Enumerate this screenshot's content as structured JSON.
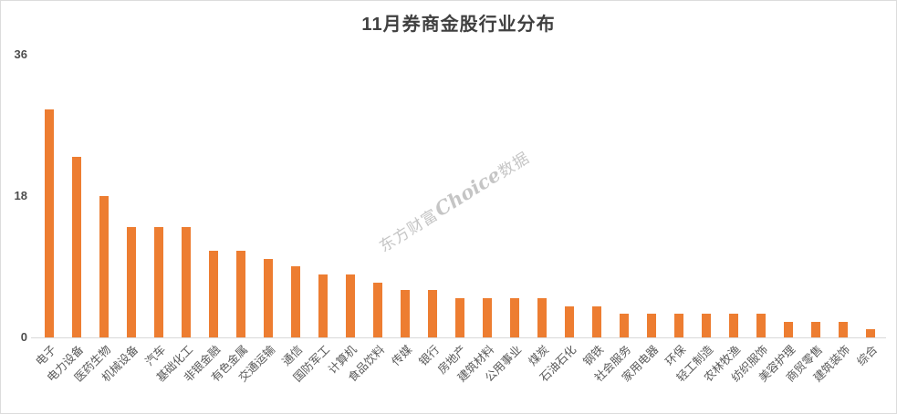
{
  "watermark": {
    "prefix": "东方财富",
    "brand": "Choice",
    "suffix": "数据"
  },
  "colors": {
    "bar": "#ED7D31",
    "axis_line": "#D9D9D9",
    "title_text": "#404040",
    "tick_text": "#4D4D4D",
    "label_text": "#595959",
    "watermark_text": "#969696"
  },
  "chart_data": {
    "type": "bar",
    "title": "11月券商金股行业分布",
    "categories": [
      "电子",
      "电力设备",
      "医药生物",
      "机械设备",
      "汽车",
      "基础化工",
      "非银金融",
      "有色金属",
      "交通运输",
      "通信",
      "国防军工",
      "计算机",
      "食品饮料",
      "传媒",
      "银行",
      "房地产",
      "建筑材料",
      "公用事业",
      "煤炭",
      "石油石化",
      "钢铁",
      "社会服务",
      "家用电器",
      "环保",
      "轻工制造",
      "农林牧渔",
      "纺织服饰",
      "美容护理",
      "商贸零售",
      "建筑装饰",
      "综合"
    ],
    "values": [
      29,
      23,
      18,
      14,
      14,
      14,
      11,
      11,
      10,
      9,
      8,
      8,
      7,
      6,
      6,
      5,
      5,
      5,
      5,
      4,
      4,
      3,
      3,
      3,
      3,
      3,
      3,
      2,
      2,
      2,
      1
    ],
    "xlabel": "",
    "ylabel": "",
    "ylim": [
      0,
      36
    ],
    "yticks": [
      0,
      18,
      36
    ],
    "grid": false,
    "legend": false,
    "x_label_rotation_deg": 45
  }
}
